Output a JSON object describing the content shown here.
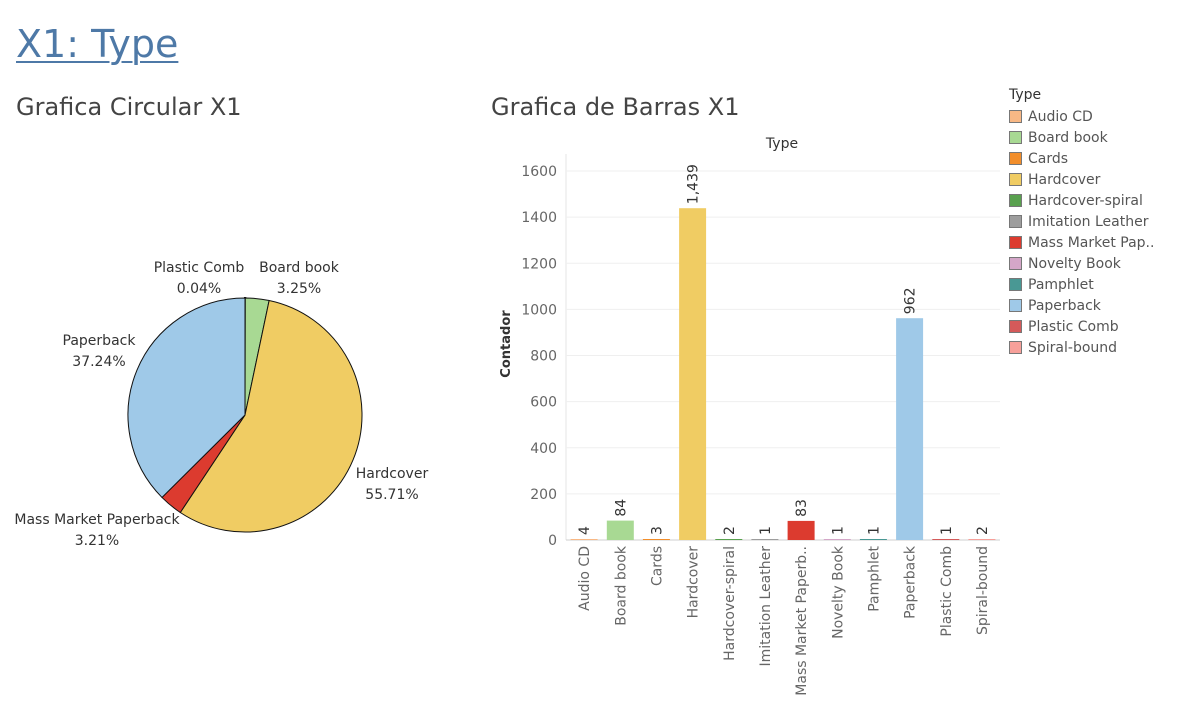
{
  "page": {
    "title": "X1: Type"
  },
  "pie": {
    "title": "Grafica Circular X1",
    "labels": [
      {
        "category": "Plastic Comb",
        "name": "Plastic Comb",
        "pct": "0.04%"
      },
      {
        "category": "Board book",
        "name": "Board book",
        "pct": "3.25%"
      },
      {
        "category": "Paperback",
        "name": "Paperback",
        "pct": "37.24%"
      },
      {
        "category": "Hardcover",
        "name": "Hardcover",
        "pct": "55.71%"
      },
      {
        "category": "Mass Market Paperback",
        "name": "Mass Market Paperback",
        "pct": "3.21%"
      }
    ]
  },
  "bar": {
    "title": "Grafica de Barras X1",
    "header": "Type",
    "ylabel": "Contador"
  },
  "legend": {
    "title": "Type",
    "items": [
      "Audio CD",
      "Board book",
      "Cards",
      "Hardcover",
      "Hardcover-spiral",
      "Imitation Leather",
      "Mass Market Pap..",
      "Novelty Book",
      "Pamphlet",
      "Paperback",
      "Plastic Comb",
      "Spiral-bound"
    ]
  },
  "chart_data": [
    {
      "type": "pie",
      "title": "Grafica Circular X1",
      "slices": [
        {
          "label": "Plastic Comb",
          "percent": 0.04,
          "color": "#d45a5a"
        },
        {
          "label": "Board book",
          "percent": 3.25,
          "color": "#a8d993"
        },
        {
          "label": "Hardcover",
          "percent": 55.71,
          "color": "#f0cc63"
        },
        {
          "label": "Mass Market Paperback",
          "percent": 3.21,
          "color": "#dc3b2f"
        },
        {
          "label": "Paperback",
          "percent": 37.24,
          "color": "#9fc9e8"
        }
      ]
    },
    {
      "type": "bar",
      "title": "Grafica de Barras X1",
      "xlabel": "Type",
      "ylabel": "Contador",
      "ylim": [
        0,
        1700
      ],
      "yticks": [
        0,
        200,
        400,
        600,
        800,
        1000,
        1200,
        1400,
        1600
      ],
      "grid": true,
      "categories": [
        "Audio CD",
        "Board book",
        "Cards",
        "Hardcover",
        "Hardcover-spiral",
        "Imitation Leather",
        "Mass Market Paperb..",
        "Novelty Book",
        "Pamphlet",
        "Paperback",
        "Plastic Comb",
        "Spiral-bound"
      ],
      "values": [
        4,
        84,
        3,
        1439,
        2,
        1,
        83,
        1,
        1,
        962,
        1,
        2
      ],
      "data_labels": [
        "4",
        "84",
        "3",
        "1,439",
        "2",
        "1",
        "83",
        "1",
        "1",
        "962",
        "1",
        "2"
      ],
      "colors": [
        "#f8b885",
        "#a8d993",
        "#f28e2b",
        "#f0cc63",
        "#59a14f",
        "#9d9d9d",
        "#dc3b2f",
        "#d4a6c8",
        "#499894",
        "#9fc9e8",
        "#d45a5a",
        "#f7a09a"
      ]
    }
  ]
}
